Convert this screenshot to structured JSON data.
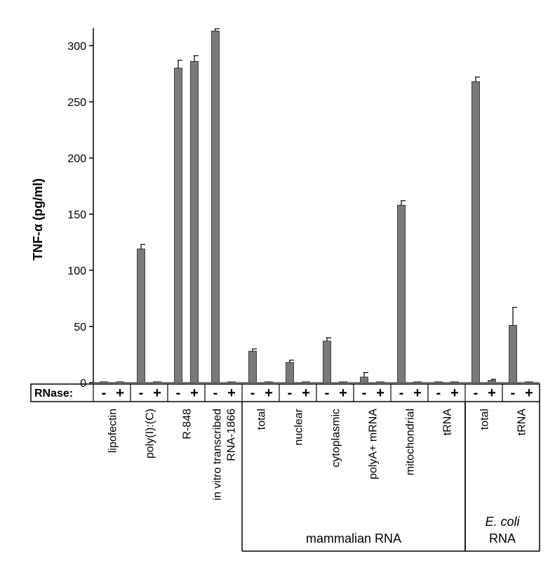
{
  "chart_data": {
    "type": "bar",
    "ylabel": "TNF-α (pg/ml)",
    "ylim": [
      0,
      320
    ],
    "yticks": [
      0,
      50,
      100,
      150,
      200,
      250,
      300
    ],
    "rnase_label": "RNase:",
    "signs": [
      "-",
      "+"
    ],
    "bar_color": "#7a7a7a",
    "categories": [
      "lipofectin",
      "poly(I):(C)",
      "R-848",
      "in vitro transcribed RNA-1866",
      "total",
      "nuclear",
      "cytoplasmic",
      "polyA+ mRNA",
      "mitochondrial",
      "tRNA",
      "total",
      "tRNA"
    ],
    "category_lines": [
      [
        "lipofectin"
      ],
      [
        "poly(I):(C)"
      ],
      [
        "R-848"
      ],
      [
        "in vitro transcribed",
        "RNA-1866"
      ],
      [
        "total"
      ],
      [
        "nuclear"
      ],
      [
        "cytoplasmic"
      ],
      [
        "polyA+ mRNA"
      ],
      [
        "mitochondrial"
      ],
      [
        "tRNA"
      ],
      [
        "total"
      ],
      [
        "tRNA"
      ]
    ],
    "series": [
      {
        "name": "-",
        "values": [
          0,
          119,
          280,
          313,
          28,
          18,
          37,
          5,
          158,
          0,
          268,
          51
        ]
      },
      {
        "name": "+",
        "values": [
          0,
          0,
          286,
          0,
          0,
          0,
          0,
          0,
          0,
          0,
          2,
          0
        ]
      }
    ],
    "errors": [
      [
        0,
        4,
        7,
        2,
        2,
        2,
        3,
        4,
        4,
        0,
        4,
        16
      ],
      [
        0,
        0,
        5,
        0,
        0,
        0,
        0,
        0,
        0,
        0,
        1,
        0
      ]
    ],
    "groups": [
      {
        "lines": [
          "mammalian RNA"
        ],
        "first": 4,
        "last": 9
      },
      {
        "lines": [
          "E. coli",
          "RNA"
        ],
        "italic_line": 0,
        "first": 10,
        "last": 11
      }
    ]
  }
}
